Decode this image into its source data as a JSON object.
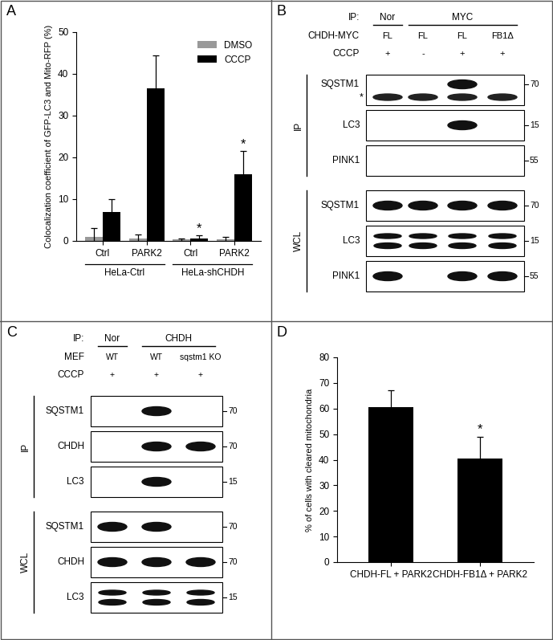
{
  "chart_data": [
    {
      "panel_label": "A",
      "type": "bar",
      "categories": [
        "Ctrl",
        "PARK2",
        "Ctrl",
        "PARK2"
      ],
      "groups": [
        {
          "name": "HeLa-Ctrl",
          "categories": 2
        },
        {
          "name": "HeLa-shCHDH",
          "categories": 2
        }
      ],
      "series": [
        {
          "name": "DMSO",
          "color": "#999999",
          "values": [
            1,
            0.5,
            0.3,
            0.4
          ],
          "errors": [
            2,
            1,
            0.3,
            0.5
          ]
        },
        {
          "name": "CCCP",
          "color": "#000000",
          "values": [
            7,
            36.5,
            0.5,
            16
          ],
          "errors": [
            3,
            8,
            0.8,
            5.5
          ]
        }
      ],
      "y_label": "Colocalization coefficient of GFP-LC3 and Mito-RFP (%)",
      "ylim": [
        0,
        50
      ],
      "yticks": [
        0,
        10,
        20,
        30,
        40,
        50
      ],
      "legend": "upper right",
      "grid": false,
      "annotations": [
        {
          "text": "*",
          "category": 2,
          "series": "CCCP"
        },
        {
          "text": "*",
          "category": 3,
          "series": "CCCP"
        }
      ]
    },
    {
      "panel_label": "D",
      "type": "bar",
      "categories": [
        "CHDH-FL + PARK2",
        "CHDH-FB1Δ + PARK2"
      ],
      "values": [
        60.5,
        40.5
      ],
      "errors": [
        6.5,
        8.5
      ],
      "color": "#000000",
      "y_label": "% of cells with cleared mitochondria",
      "ylim": [
        0,
        80
      ],
      "yticks": [
        0,
        10,
        20,
        30,
        40,
        50,
        60,
        70,
        80
      ],
      "grid": false,
      "annotations": [
        {
          "text": "*",
          "category": 1
        }
      ]
    }
  ],
  "blots": [
    {
      "panel_label": "B",
      "ip_label": "IP:",
      "ip_groups": [
        {
          "name": "Nor",
          "lanes": 1
        },
        {
          "name": "MYC",
          "lanes": 3
        }
      ],
      "conditions": [
        {
          "name": "CHDH-MYC",
          "lanes": [
            "FL",
            "FL",
            "FL",
            "FB1Δ"
          ]
        },
        {
          "name": "CCCP",
          "lanes": [
            "+",
            "-",
            "+",
            "+"
          ]
        }
      ],
      "sections": [
        {
          "name": "IP",
          "rows": [
            {
              "name": "SQSTM1",
              "bands": [
                false,
                false,
                true,
                false
              ],
              "mw": "70",
              "star": "*"
            },
            {
              "name": "LC3",
              "bands": [
                false,
                false,
                true,
                false
              ],
              "mw": "15"
            },
            {
              "name": "PINK1",
              "bands": [
                false,
                false,
                false,
                false
              ],
              "mw": "55"
            }
          ]
        },
        {
          "name": "WCL",
          "rows": [
            {
              "name": "SQSTM1",
              "bands": [
                true,
                true,
                true,
                true
              ],
              "mw": "70"
            },
            {
              "name": "LC3",
              "bands": [
                true,
                true,
                true,
                true
              ],
              "mw": "15",
              "double": true
            },
            {
              "name": "PINK1",
              "bands": [
                true,
                false,
                true,
                true
              ],
              "mw": "55"
            }
          ]
        }
      ]
    },
    {
      "panel_label": "C",
      "ip_label": "IP:",
      "ip_groups": [
        {
          "name": "Nor",
          "lanes": 1
        },
        {
          "name": "CHDH",
          "lanes": 2
        }
      ],
      "conditions": [
        {
          "name": "MEF",
          "lanes": [
            "WT",
            "WT",
            "sqstm1 KO"
          ]
        },
        {
          "name": "CCCP",
          "lanes": [
            "+",
            "+",
            "+"
          ]
        }
      ],
      "sections": [
        {
          "name": "IP",
          "rows": [
            {
              "name": "SQSTM1",
              "bands": [
                false,
                true,
                false
              ],
              "mw": "70"
            },
            {
              "name": "CHDH",
              "bands": [
                false,
                true,
                true
              ],
              "mw": "70"
            },
            {
              "name": "LC3",
              "bands": [
                false,
                true,
                false
              ],
              "mw": "15"
            }
          ]
        },
        {
          "name": "WCL",
          "rows": [
            {
              "name": "SQSTM1",
              "bands": [
                true,
                true,
                false
              ],
              "mw": "70"
            },
            {
              "name": "CHDH",
              "bands": [
                true,
                true,
                true
              ],
              "mw": "70"
            },
            {
              "name": "LC3",
              "bands": [
                true,
                true,
                true
              ],
              "mw": "15",
              "double": true
            }
          ]
        }
      ]
    }
  ]
}
